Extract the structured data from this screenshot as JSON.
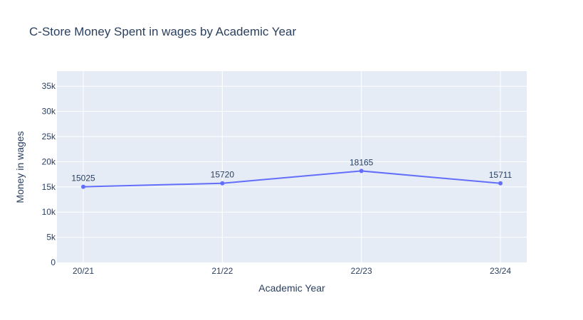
{
  "chart_data": {
    "type": "line",
    "title": "C-Store Money Spent in wages by Academic Year",
    "xlabel": "Academic Year",
    "ylabel": "Money in wages",
    "categories": [
      "20/21",
      "21/22",
      "22/23",
      "23/24"
    ],
    "values": [
      15025,
      15720,
      18165,
      15711
    ],
    "data_labels": [
      "15025",
      "15720",
      "18165",
      "15711"
    ],
    "ylim": [
      0,
      38000
    ],
    "yticks": [
      0,
      5000,
      10000,
      15000,
      20000,
      25000,
      30000,
      35000
    ],
    "ytick_labels": [
      "0",
      "5k",
      "10k",
      "15k",
      "20k",
      "25k",
      "30k",
      "35k"
    ],
    "grid": true,
    "markers": true,
    "colors": {
      "line": "#636efa",
      "plot_bg": "#e5ecf6",
      "grid": "#ffffff",
      "text": "#2a3f5f"
    }
  }
}
